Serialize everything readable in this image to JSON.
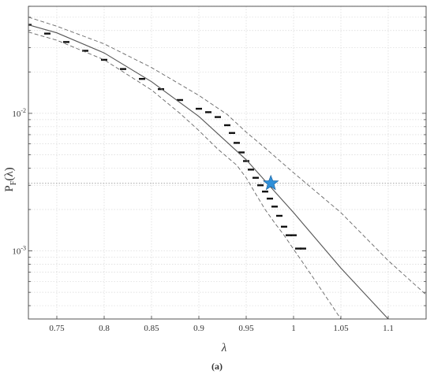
{
  "chart_data": {
    "type": "scatter",
    "panel_label": "(a)",
    "xlabel": "λ",
    "ylabel": "P",
    "ylabel_sub": "F",
    "ylabel_arg": "(λ)",
    "x_scale": "linear",
    "y_scale": "log",
    "xlim": [
      0.72,
      1.14
    ],
    "ylim": [
      0.00032,
      0.06
    ],
    "grid": true,
    "x_ticks": [
      0.75,
      0.8,
      0.85,
      0.9,
      0.95,
      1,
      1.05,
      1.1
    ],
    "x_tick_labels": [
      "0.75",
      "0.8",
      "0.85",
      "0.9",
      "0.95",
      "1",
      "1.05",
      "1.1"
    ],
    "y_major_ticks": [
      0.001,
      0.01
    ],
    "y_tick_labels": [
      {
        "base": "10",
        "exp": "-3"
      },
      {
        "base": "10",
        "exp": "-2"
      }
    ],
    "reference_line_y": 0.0031,
    "highlight_point": {
      "x": 0.976,
      "y": 0.0031,
      "color": "#2f8fd8"
    },
    "colors": {
      "axes": "#444444",
      "grid": "#d8d8d8",
      "data": "#111111",
      "fit": "#555555",
      "bounds": "#666666"
    },
    "series": [
      {
        "style": "dashes",
        "x": [
          0.72,
          0.74,
          0.76,
          0.78,
          0.8,
          0.82,
          0.84,
          0.86,
          0.88,
          0.9,
          0.91,
          0.92,
          0.93,
          0.935,
          0.94,
          0.945,
          0.95,
          0.955,
          0.96,
          0.965,
          0.97,
          0.975,
          0.98,
          0.985,
          0.99,
          0.995,
          1.0,
          1.005,
          1.01
        ],
        "y": [
          0.044,
          0.038,
          0.033,
          0.0285,
          0.0245,
          0.021,
          0.0178,
          0.015,
          0.0125,
          0.0108,
          0.0102,
          0.0094,
          0.0082,
          0.0072,
          0.0061,
          0.0052,
          0.0045,
          0.0039,
          0.0034,
          0.003,
          0.0027,
          0.0024,
          0.0021,
          0.0018,
          0.0015,
          0.0013,
          0.0013,
          0.00104,
          0.00104
        ]
      },
      {
        "style": "solid",
        "x": [
          0.72,
          0.75,
          0.8,
          0.85,
          0.9,
          0.95,
          1.0,
          1.05,
          1.1
        ],
        "y": [
          0.044,
          0.0385,
          0.0275,
          0.017,
          0.0095,
          0.0046,
          0.0019,
          0.00075,
          0.00032
        ]
      },
      {
        "style": "dashed",
        "x": [
          0.72,
          0.75,
          0.8,
          0.85,
          0.9,
          0.93,
          0.95,
          0.97,
          1.0,
          1.05,
          1.1,
          1.14
        ],
        "y": [
          0.05,
          0.043,
          0.032,
          0.0215,
          0.0135,
          0.0098,
          0.0073,
          0.0056,
          0.0037,
          0.0019,
          0.00085,
          0.00048
        ]
      },
      {
        "style": "dashed",
        "x": [
          0.72,
          0.75,
          0.8,
          0.85,
          0.88,
          0.9,
          0.92,
          0.94,
          0.95,
          0.96,
          0.97,
          0.98,
          0.99,
          1.0,
          1.02,
          1.05
        ],
        "y": [
          0.039,
          0.034,
          0.0245,
          0.0148,
          0.01,
          0.0075,
          0.0055,
          0.0042,
          0.0034,
          0.0026,
          0.002,
          0.0016,
          0.0013,
          0.00103,
          0.00065,
          0.00032
        ]
      }
    ]
  }
}
